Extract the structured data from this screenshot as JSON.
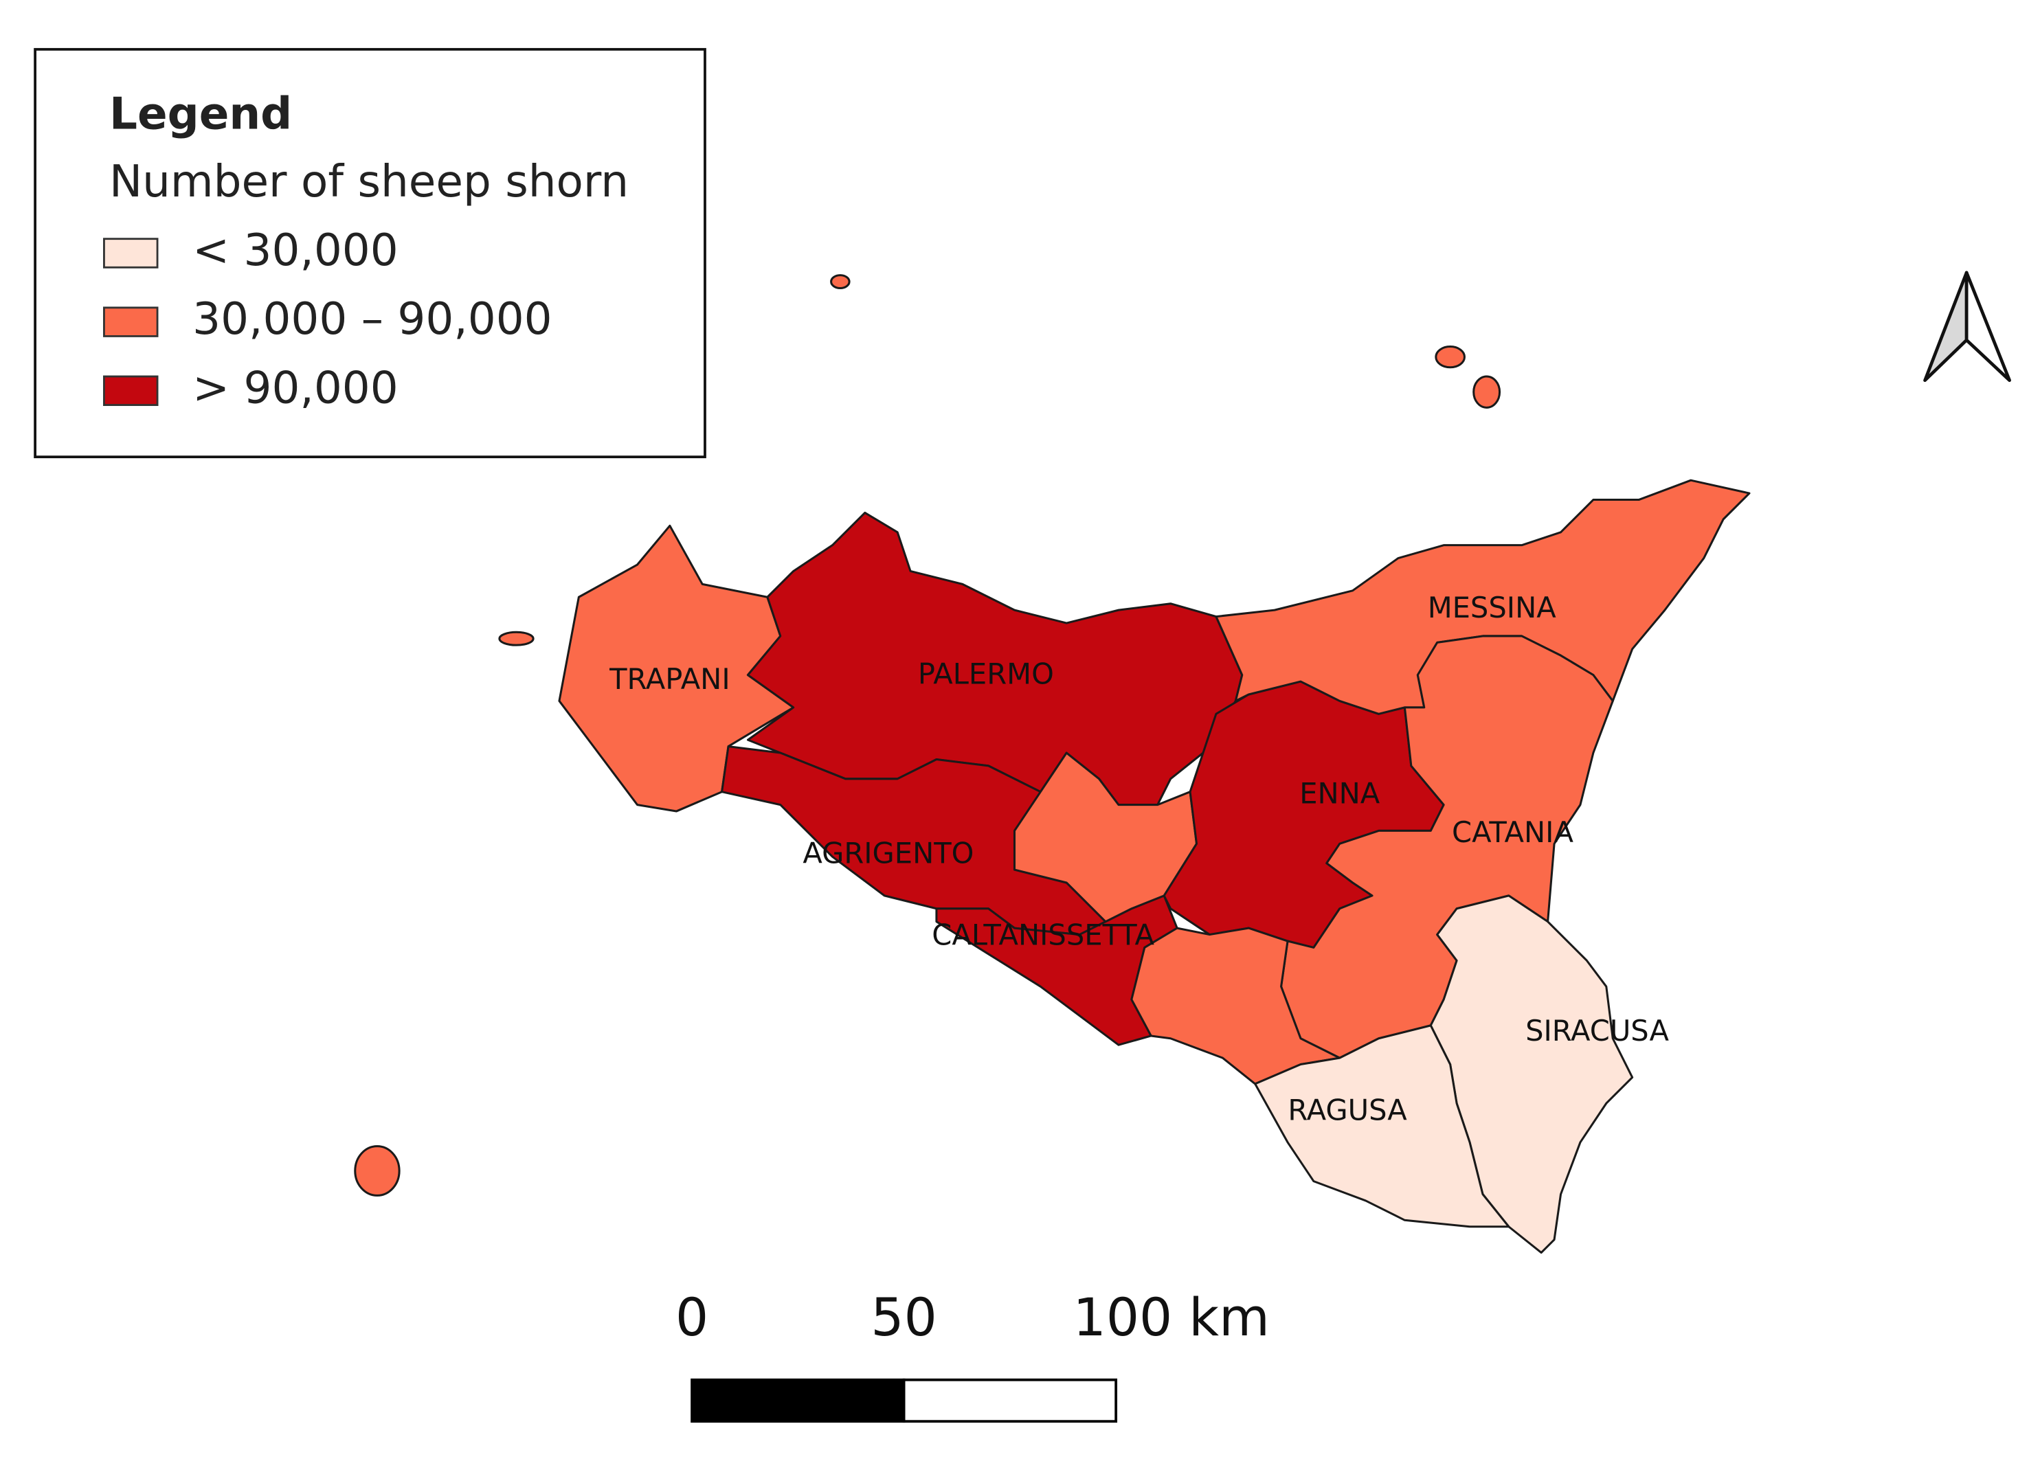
{
  "legend": {
    "title": "Legend",
    "subtitle": "Number of sheep shorn",
    "classes": [
      {
        "label": "< 30,000",
        "color": "#fee5d9"
      },
      {
        "label": "30,000 – 90,000",
        "color": "#fb6a4a"
      },
      {
        "label": "> 90,000",
        "color": "#c3070f"
      }
    ]
  },
  "provinces": [
    {
      "name": "TRAPANI",
      "color": "#fb6a4a"
    },
    {
      "name": "PALERMO",
      "color": "#c3070f"
    },
    {
      "name": "AGRIGENTO",
      "color": "#c3070f"
    },
    {
      "name": "CALTANISSETTA",
      "color": "#c3070f"
    },
    {
      "name": "ENNA",
      "color": "#c3070f"
    },
    {
      "name": "MESSINA",
      "color": "#fb6a4a"
    },
    {
      "name": "CATANIA",
      "color": "#fb6a4a"
    },
    {
      "name": "SIRACUSA",
      "color": "#fee5d9"
    },
    {
      "name": "RAGUSA",
      "color": "#fee5d9"
    }
  ],
  "scale_bar": {
    "ticks": [
      0,
      50,
      {
        "value": 100,
        "label": "100 km"
      }
    ]
  }
}
